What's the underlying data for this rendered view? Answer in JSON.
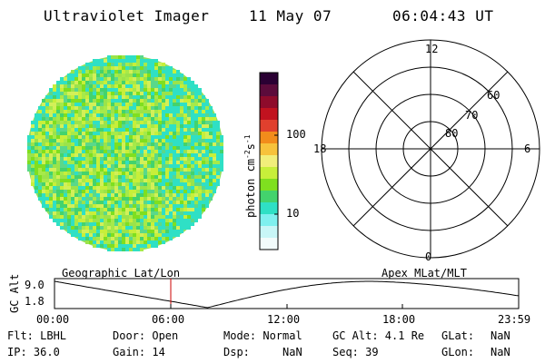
{
  "header": {
    "instrument": "Ultraviolet Imager",
    "date": "11 May 07",
    "time": "06:04:43 UT"
  },
  "colorbar": {
    "label": "photon cm",
    "label_sup1": "-2",
    "label_mid": "s",
    "label_sup2": "-1",
    "ticks": [
      "100",
      "10"
    ],
    "colors": [
      "#2a0033",
      "#5c0b3b",
      "#8e0b2b",
      "#c1121f",
      "#e0402e",
      "#f28c1b",
      "#f7c23b",
      "#f1ee7a",
      "#c7ef3a",
      "#7fdf1f",
      "#43d36d",
      "#2fe0c5",
      "#7ff0ef",
      "#c8f6f7",
      "#f2fbfb"
    ]
  },
  "polar": {
    "labels": [
      "12",
      "18",
      "6",
      "0",
      "60",
      "70",
      "80"
    ]
  },
  "timeline": {
    "left_label": "Geographic Lat/Lon",
    "right_label": "Apex MLat/MLT",
    "axis_label": "GC Alt",
    "y_ticks": [
      "9.0",
      "1.8"
    ],
    "x_ticks": [
      "00:00",
      "06:00",
      "12:00",
      "18:00",
      "23:59"
    ]
  },
  "footer": {
    "flt": "Flt: LBHL",
    "ip": "IP: 36.0",
    "door": "Door: Open",
    "gain": "Gain: 14",
    "mode": "Mode: Normal",
    "dsp": "Dsp:     NaN",
    "gcalt": "GC Alt: 4.1 Re",
    "seq": "Seq: 39",
    "glat_label": "GLat:",
    "glat_val": "NaN",
    "glon_label": "GLon:",
    "glon_val": "NaN"
  }
}
